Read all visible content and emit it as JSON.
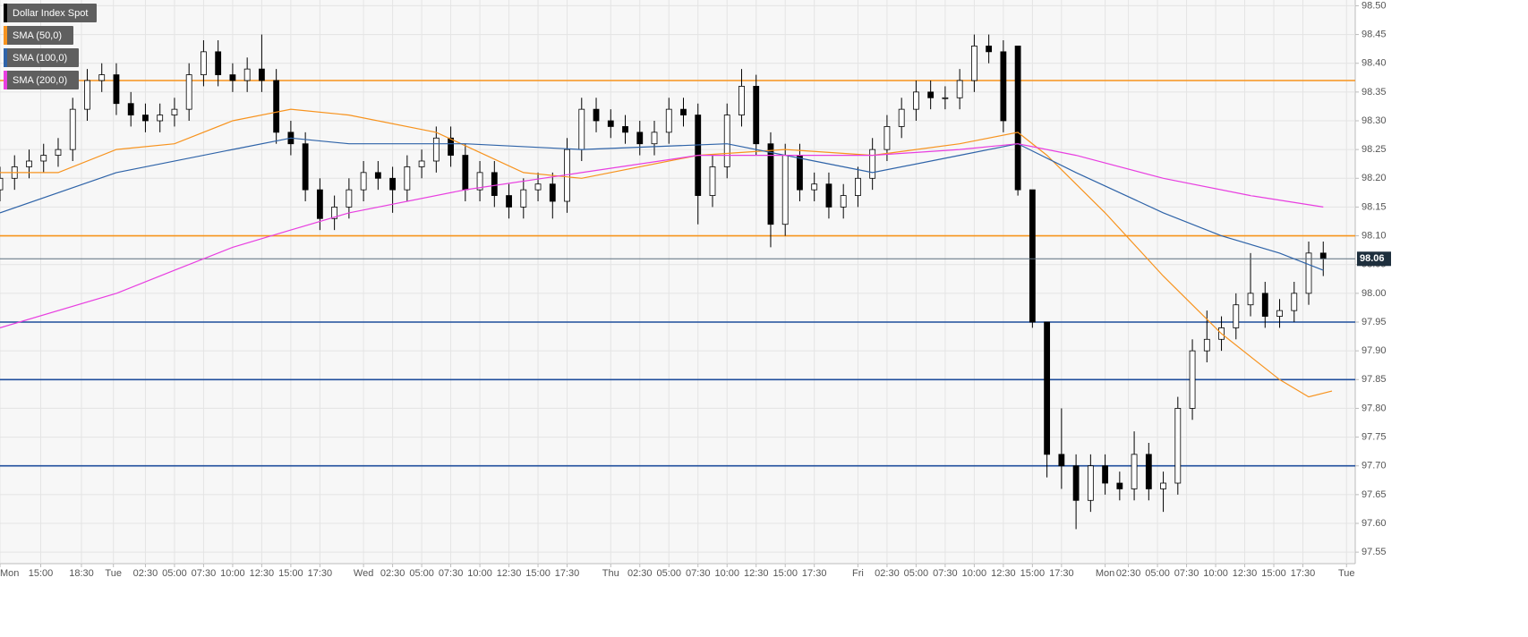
{
  "chart_data": {
    "type": "candlestick",
    "xlim": [
      0,
      46.6
    ],
    "ylim": [
      97.53,
      98.51
    ],
    "grid": true,
    "xticks": [
      {
        "value": 0,
        "label": "Mon"
      },
      {
        "value": 1.4,
        "label": "15:00"
      },
      {
        "value": 2.8,
        "label": "18:30"
      },
      {
        "value": 3.9,
        "label": "Tue"
      },
      {
        "value": 5,
        "label": "02:30"
      },
      {
        "value": 6,
        "label": "05:00"
      },
      {
        "value": 7,
        "label": "07:30"
      },
      {
        "value": 8,
        "label": "10:00"
      },
      {
        "value": 9,
        "label": "12:30"
      },
      {
        "value": 10,
        "label": "15:00"
      },
      {
        "value": 11,
        "label": "17:30"
      },
      {
        "value": 12.5,
        "label": "Wed"
      },
      {
        "value": 13.5,
        "label": "02:30"
      },
      {
        "value": 14.5,
        "label": "05:00"
      },
      {
        "value": 15.5,
        "label": "07:30"
      },
      {
        "value": 16.5,
        "label": "10:00"
      },
      {
        "value": 17.5,
        "label": "12:30"
      },
      {
        "value": 18.5,
        "label": "15:00"
      },
      {
        "value": 19.5,
        "label": "17:30"
      },
      {
        "value": 21,
        "label": "Thu"
      },
      {
        "value": 22,
        "label": "02:30"
      },
      {
        "value": 23,
        "label": "05:00"
      },
      {
        "value": 24,
        "label": "07:30"
      },
      {
        "value": 25,
        "label": "10:00"
      },
      {
        "value": 26,
        "label": "12:30"
      },
      {
        "value": 27,
        "label": "15:00"
      },
      {
        "value": 28,
        "label": "17:30"
      },
      {
        "value": 29.5,
        "label": "Fri"
      },
      {
        "value": 30.5,
        "label": "02:30"
      },
      {
        "value": 31.5,
        "label": "05:00"
      },
      {
        "value": 32.5,
        "label": "07:30"
      },
      {
        "value": 33.5,
        "label": "10:00"
      },
      {
        "value": 34.5,
        "label": "12:30"
      },
      {
        "value": 35.5,
        "label": "15:00"
      },
      {
        "value": 36.5,
        "label": "17:30"
      },
      {
        "value": 38,
        "label": "Mon"
      },
      {
        "value": 38.8,
        "label": "02:30"
      },
      {
        "value": 39.8,
        "label": "05:00"
      },
      {
        "value": 40.8,
        "label": "07:30"
      },
      {
        "value": 41.8,
        "label": "10:00"
      },
      {
        "value": 42.8,
        "label": "12:30"
      },
      {
        "value": 43.8,
        "label": "15:00"
      },
      {
        "value": 44.8,
        "label": "17:30"
      },
      {
        "value": 46.3,
        "label": "Tue"
      }
    ],
    "yticks": [
      97.55,
      {
        "value": 97.6,
        "label": "97.60"
      },
      97.65,
      {
        "value": 97.7,
        "label": "97.70"
      },
      97.75,
      {
        "value": 97.8,
        "label": "97.80"
      },
      97.85,
      {
        "value": 97.9,
        "label": "97.90"
      },
      97.95,
      {
        "value": 98,
        "label": "98.00"
      },
      98.05,
      {
        "value": 98.1,
        "label": "98.10"
      },
      98.15,
      {
        "value": 98.2,
        "label": "98.20"
      },
      98.25,
      {
        "value": 98.3,
        "label": "98.30"
      },
      98.35,
      {
        "value": 98.4,
        "label": "98.40"
      },
      98.45,
      {
        "value": 98.5,
        "label": "98.50"
      }
    ],
    "levels": [
      {
        "value": 98.37,
        "color": "#f7941d"
      },
      {
        "value": 98.1,
        "color": "#f7941d"
      },
      {
        "value": 97.95,
        "color": "#1f4e9c"
      },
      {
        "value": 97.85,
        "color": "#1f4e9c"
      },
      {
        "value": 97.7,
        "color": "#1f4e9c"
      }
    ],
    "series": [
      {
        "name": "Dollar Index Spot",
        "type": "candlestick",
        "color": "#000000",
        "x": [
          0,
          0.5,
          1,
          1.5,
          2,
          2.5,
          3,
          3.5,
          4,
          4.5,
          5,
          5.5,
          6,
          6.5,
          7,
          7.5,
          8,
          8.5,
          9,
          9.5,
          10,
          10.5,
          11,
          11.5,
          12,
          12.5,
          13,
          13.5,
          14,
          14.5,
          15,
          15.5,
          16,
          16.5,
          17,
          17.5,
          18,
          18.5,
          19,
          19.5,
          20,
          20.5,
          21,
          21.5,
          22,
          22.5,
          23,
          23.5,
          24,
          24.5,
          25,
          25.5,
          26,
          26.5,
          27,
          27.5,
          28,
          28.5,
          29,
          29.5,
          30,
          30.5,
          31,
          31.5,
          32,
          32.5,
          33,
          33.5,
          34,
          34.5,
          35,
          35.5,
          36,
          36.5,
          37,
          37.5,
          38,
          38.5,
          39,
          39.5,
          40,
          40.5,
          41,
          41.5,
          42,
          42.5,
          43,
          43.5,
          44,
          44.5,
          45,
          45.5
        ],
        "open": [
          98.18,
          98.2,
          98.22,
          98.23,
          98.24,
          98.25,
          98.32,
          98.37,
          98.38,
          98.33,
          98.31,
          98.3,
          98.31,
          98.32,
          98.38,
          98.42,
          98.38,
          98.37,
          98.39,
          98.37,
          98.28,
          98.26,
          98.18,
          98.13,
          98.15,
          98.18,
          98.21,
          98.2,
          98.18,
          98.22,
          98.23,
          98.27,
          98.24,
          98.18,
          98.21,
          98.17,
          98.15,
          98.18,
          98.19,
          98.16,
          98.25,
          98.32,
          98.3,
          98.29,
          98.28,
          98.26,
          98.28,
          98.32,
          98.31,
          98.17,
          98.22,
          98.31,
          98.36,
          98.26,
          98.12,
          98.24,
          98.18,
          98.19,
          98.15,
          98.17,
          98.2,
          98.25,
          98.29,
          98.32,
          98.35,
          98.34,
          98.34,
          98.37,
          98.43,
          98.42,
          98.43,
          98.18,
          97.95,
          97.72,
          97.7,
          97.64,
          97.7,
          97.67,
          97.66,
          97.72,
          97.66,
          97.67,
          97.8,
          97.9,
          97.92,
          97.94,
          97.98,
          98,
          97.96,
          97.97,
          98,
          98.07
        ],
        "high": [
          98.22,
          98.24,
          98.25,
          98.26,
          98.27,
          98.34,
          98.39,
          98.4,
          98.4,
          98.35,
          98.33,
          98.33,
          98.34,
          98.4,
          98.44,
          98.44,
          98.4,
          98.41,
          98.45,
          98.39,
          98.3,
          98.28,
          98.2,
          98.17,
          98.2,
          98.23,
          98.23,
          98.22,
          98.24,
          98.25,
          98.29,
          98.29,
          98.26,
          98.23,
          98.23,
          98.19,
          98.2,
          98.21,
          98.21,
          98.27,
          98.34,
          98.34,
          98.32,
          98.31,
          98.3,
          98.3,
          98.34,
          98.34,
          98.33,
          98.24,
          98.33,
          98.39,
          98.38,
          98.28,
          98.26,
          98.26,
          98.21,
          98.21,
          98.19,
          98.22,
          98.27,
          98.31,
          98.34,
          98.37,
          98.37,
          98.36,
          98.39,
          98.45,
          98.45,
          98.44,
          98.43,
          98.18,
          97.95,
          97.8,
          97.72,
          97.72,
          97.72,
          97.69,
          97.76,
          97.74,
          97.69,
          97.82,
          97.92,
          97.97,
          97.96,
          98,
          98.07,
          98.02,
          97.99,
          98.02,
          98.09,
          98.09
        ],
        "low": [
          98.16,
          98.18,
          98.2,
          98.21,
          98.22,
          98.23,
          98.3,
          98.35,
          98.31,
          98.29,
          98.28,
          98.28,
          98.29,
          98.3,
          98.36,
          98.36,
          98.35,
          98.35,
          98.35,
          98.26,
          98.24,
          98.16,
          98.11,
          98.11,
          98.13,
          98.16,
          98.18,
          98.14,
          98.16,
          98.2,
          98.21,
          98.22,
          98.16,
          98.16,
          98.15,
          98.13,
          98.13,
          98.16,
          98.13,
          98.14,
          98.23,
          98.28,
          98.27,
          98.26,
          98.24,
          98.24,
          98.26,
          98.29,
          98.12,
          98.15,
          98.2,
          98.29,
          98.24,
          98.08,
          98.1,
          98.16,
          98.16,
          98.13,
          98.13,
          98.15,
          98.18,
          98.23,
          98.27,
          98.3,
          98.32,
          98.32,
          98.32,
          98.35,
          98.4,
          98.28,
          98.17,
          97.94,
          97.68,
          97.66,
          97.59,
          97.62,
          97.65,
          97.64,
          97.64,
          97.64,
          97.62,
          97.65,
          97.78,
          97.88,
          97.9,
          97.92,
          97.96,
          97.94,
          97.94,
          97.95,
          97.98,
          98.03
        ],
        "close": [
          98.2,
          98.22,
          98.23,
          98.24,
          98.25,
          98.32,
          98.37,
          98.38,
          98.33,
          98.31,
          98.3,
          98.31,
          98.32,
          98.38,
          98.42,
          98.38,
          98.37,
          98.39,
          98.37,
          98.28,
          98.26,
          98.18,
          98.13,
          98.15,
          98.18,
          98.21,
          98.2,
          98.18,
          98.22,
          98.23,
          98.27,
          98.24,
          98.18,
          98.21,
          98.17,
          98.15,
          98.18,
          98.19,
          98.16,
          98.25,
          98.32,
          98.3,
          98.29,
          98.28,
          98.26,
          98.28,
          98.32,
          98.31,
          98.17,
          98.22,
          98.31,
          98.36,
          98.26,
          98.12,
          98.24,
          98.18,
          98.19,
          98.15,
          98.17,
          98.2,
          98.25,
          98.29,
          98.32,
          98.35,
          98.34,
          98.34,
          98.37,
          98.43,
          98.42,
          98.3,
          98.18,
          97.95,
          97.72,
          97.7,
          97.64,
          97.7,
          97.67,
          97.66,
          97.72,
          97.66,
          97.67,
          97.8,
          97.9,
          97.92,
          97.94,
          97.98,
          98,
          97.96,
          97.97,
          98,
          98.07,
          98.06
        ]
      },
      {
        "name": "SMA (50,0)",
        "type": "line",
        "color": "#f7931e",
        "x": [
          0,
          2,
          4,
          6,
          8,
          10,
          12,
          15,
          18,
          20,
          24,
          27,
          30,
          33,
          35,
          36,
          38,
          40,
          42,
          44,
          45,
          45.8
        ],
        "values": [
          98.21,
          98.21,
          98.25,
          98.26,
          98.3,
          98.32,
          98.31,
          98.28,
          98.21,
          98.2,
          98.24,
          98.25,
          98.24,
          98.26,
          98.28,
          98.24,
          98.14,
          98.03,
          97.93,
          97.85,
          97.82,
          97.83
        ]
      },
      {
        "name": "SMA (100,0)",
        "type": "line",
        "color": "#2e63a8",
        "x": [
          0,
          4,
          8,
          10,
          12,
          16,
          20,
          25,
          28,
          30,
          33,
          35,
          37,
          40,
          42,
          44,
          45.5
        ],
        "values": [
          98.14,
          98.21,
          98.25,
          98.27,
          98.26,
          98.26,
          98.25,
          98.26,
          98.23,
          98.21,
          98.24,
          98.26,
          98.21,
          98.14,
          98.1,
          98.07,
          98.04
        ]
      },
      {
        "name": "SMA (200,0)",
        "type": "line",
        "color": "#e83ee0",
        "x": [
          0,
          4,
          6,
          8,
          10,
          12,
          16,
          20,
          24,
          28,
          30,
          33,
          35,
          37,
          40,
          43,
          45.5
        ],
        "values": [
          97.94,
          98,
          98.04,
          98.08,
          98.11,
          98.14,
          98.18,
          98.21,
          98.24,
          98.24,
          98.24,
          98.25,
          98.26,
          98.24,
          98.2,
          98.17,
          98.15
        ]
      }
    ]
  }
}
